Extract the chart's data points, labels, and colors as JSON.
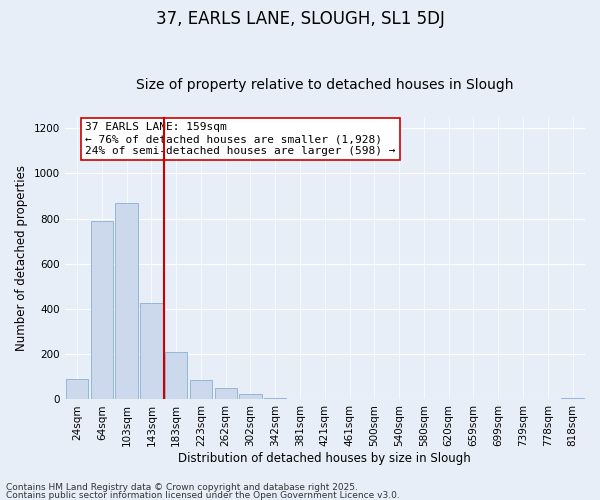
{
  "title": "37, EARLS LANE, SLOUGH, SL1 5DJ",
  "subtitle": "Size of property relative to detached houses in Slough",
  "xlabel": "Distribution of detached houses by size in Slough",
  "ylabel": "Number of detached properties",
  "categories": [
    "24sqm",
    "64sqm",
    "103sqm",
    "143sqm",
    "183sqm",
    "223sqm",
    "262sqm",
    "302sqm",
    "342sqm",
    "381sqm",
    "421sqm",
    "461sqm",
    "500sqm",
    "540sqm",
    "580sqm",
    "620sqm",
    "659sqm",
    "699sqm",
    "739sqm",
    "778sqm",
    "818sqm"
  ],
  "values": [
    90,
    790,
    870,
    425,
    210,
    88,
    52,
    22,
    5,
    0,
    0,
    0,
    0,
    0,
    0,
    0,
    0,
    0,
    0,
    0,
    5
  ],
  "bar_color": "#ccd9ed",
  "bar_edge_color": "#8ab0d4",
  "vline_color": "#cc0000",
  "annotation_title": "37 EARLS LANE: 159sqm",
  "annotation_line1": "← 76% of detached houses are smaller (1,928)",
  "annotation_line2": "24% of semi-detached houses are larger (598) →",
  "annotation_box_facecolor": "#ffffff",
  "annotation_box_edgecolor": "#cc0000",
  "ylim": [
    0,
    1250
  ],
  "yticks": [
    0,
    200,
    400,
    600,
    800,
    1000,
    1200
  ],
  "footnote1": "Contains HM Land Registry data © Crown copyright and database right 2025.",
  "footnote2": "Contains public sector information licensed under the Open Government Licence v3.0.",
  "bg_color": "#e8eef8",
  "grid_color": "#ffffff",
  "title_fontsize": 12,
  "subtitle_fontsize": 10,
  "axis_label_fontsize": 8.5,
  "tick_fontsize": 7.5,
  "annotation_fontsize": 8,
  "footnote_fontsize": 6.5
}
